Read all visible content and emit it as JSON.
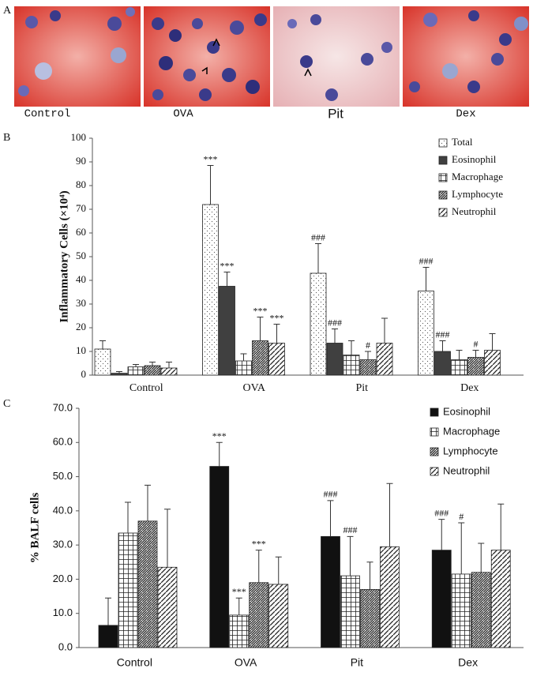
{
  "panel_a": {
    "label": "A",
    "images": [
      {
        "label": "Control"
      },
      {
        "label": "OVA"
      },
      {
        "label": "Pit"
      },
      {
        "label": "Dex"
      }
    ]
  },
  "chart_data": [
    {
      "type": "bar",
      "panel_label": "B",
      "ylabel": "Inflammatory Cells (×10⁴)",
      "categories": [
        "Control",
        "OVA",
        "Pit",
        "Dex"
      ],
      "ylim": [
        0,
        100
      ],
      "yticks": [
        0,
        10,
        20,
        30,
        40,
        50,
        60,
        70,
        80,
        90,
        100
      ],
      "legend": "upper right",
      "series": [
        {
          "name": "Total",
          "color": "#ffffff",
          "values": [
            11,
            72,
            43,
            35.5
          ],
          "errors": [
            3.5,
            16.5,
            12.5,
            10
          ],
          "annotations": [
            null,
            "***",
            "###",
            "###"
          ]
        },
        {
          "name": "Eosinophil",
          "color": "#404040",
          "values": [
            0.8,
            37.5,
            13.5,
            10
          ],
          "errors": [
            0.7,
            6,
            6,
            4.5
          ],
          "annotations": [
            null,
            "***",
            "###",
            "###"
          ]
        },
        {
          "name": "Macrophage",
          "color": "#ffffff",
          "values": [
            3.5,
            6,
            8.5,
            6.5
          ],
          "errors": [
            1,
            3,
            6,
            4
          ],
          "annotations": [
            null,
            null,
            null,
            null
          ]
        },
        {
          "name": "Lymphocyte",
          "color": "#ffffff",
          "values": [
            4,
            14.5,
            6.5,
            7.5
          ],
          "errors": [
            1.5,
            10,
            3.5,
            3
          ],
          "annotations": [
            null,
            "***",
            "#",
            "#"
          ]
        },
        {
          "name": "Neutrophil",
          "color": "#ffffff",
          "values": [
            3,
            13.5,
            13.5,
            10.5
          ],
          "errors": [
            2.5,
            8,
            10.5,
            7
          ],
          "annotations": [
            null,
            "***",
            null,
            null
          ]
        }
      ]
    },
    {
      "type": "bar",
      "panel_label": "C",
      "ylabel": "% BALF cells",
      "categories": [
        "Control",
        "OVA",
        "Pit",
        "Dex"
      ],
      "ylim": [
        0,
        70
      ],
      "yticks": [
        {
          "value": 0,
          "label": "0.0"
        },
        {
          "value": 10,
          "label": "10.0"
        },
        {
          "value": 20,
          "label": "20.0"
        },
        {
          "value": 30,
          "label": "30.0"
        },
        {
          "value": 40,
          "label": "40.0"
        },
        {
          "value": 50,
          "label": "50.0"
        },
        {
          "value": 60,
          "label": "60.0"
        },
        {
          "value": 70,
          "label": "70.0"
        }
      ],
      "legend": "upper right",
      "series": [
        {
          "name": "Eosinophil",
          "color": "#111111",
          "values": [
            6.5,
            53,
            32.5,
            28.5
          ],
          "errors": [
            8,
            7,
            10.5,
            9
          ],
          "annotations": [
            null,
            "***",
            "###",
            "###"
          ]
        },
        {
          "name": "Macrophage",
          "color": "#ffffff",
          "values": [
            33.5,
            9.5,
            21,
            21.5
          ],
          "errors": [
            9,
            5,
            11.5,
            15
          ],
          "annotations": [
            null,
            "***",
            "###",
            "#"
          ]
        },
        {
          "name": "Lymphocyte",
          "color": "#ffffff",
          "values": [
            37,
            19,
            17,
            22
          ],
          "errors": [
            10.5,
            9.5,
            8,
            8.5
          ],
          "annotations": [
            null,
            "***",
            null,
            null
          ]
        },
        {
          "name": "Neutrophil",
          "color": "#ffffff",
          "values": [
            23.5,
            18.5,
            29.5,
            28.5
          ],
          "errors": [
            17,
            8,
            18.5,
            13.5
          ],
          "annotations": [
            null,
            null,
            null,
            null
          ]
        }
      ]
    }
  ]
}
